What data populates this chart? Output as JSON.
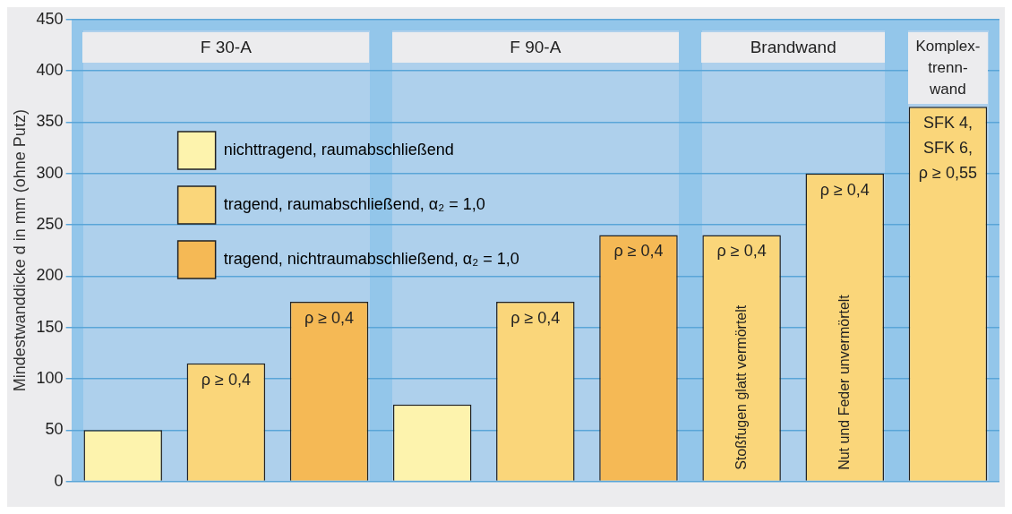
{
  "chart_data": {
    "type": "bar",
    "ylabel": "Mindestwanddicke d in mm (ohne Putz)",
    "categories": [
      null,
      null,
      null,
      null,
      null,
      null,
      null,
      null,
      null
    ],
    "series": [
      {
        "name": "nichttragend, raumabschließend",
        "color": "#fdf3ad",
        "values": [
          50,
          null,
          null,
          75,
          null,
          null,
          null,
          null,
          null
        ],
        "value_labels": [
          null,
          null,
          null,
          null,
          null,
          null,
          null,
          null,
          null
        ]
      },
      {
        "name": "tragend, raumabschließend, α₂ = 1,0",
        "color": "#fad67a",
        "values": [
          null,
          115,
          null,
          null,
          175,
          null,
          240,
          300,
          365
        ],
        "value_labels": [
          null,
          "ρ ≥ 0,4",
          null,
          null,
          "ρ ≥ 0,4",
          null,
          "ρ ≥ 0,4",
          "ρ ≥ 0,4",
          "SFK 4,\nSFK 6,\nρ ≥ 0,55"
        ]
      },
      {
        "name": "tragend, nichtraumabschließend, α₂ = 1,0",
        "color": "#f5b955",
        "values": [
          null,
          null,
          175,
          null,
          null,
          240,
          null,
          null,
          null
        ],
        "value_labels": [
          null,
          null,
          "ρ ≥ 0,4",
          null,
          null,
          "ρ ≥ 0,4",
          null,
          null,
          null
        ]
      }
    ],
    "stacked": true,
    "ylim": [
      0,
      450
    ],
    "yticks": [
      0,
      50,
      100,
      150,
      200,
      250,
      300,
      350,
      400,
      450
    ],
    "grid": "y",
    "legend": "top left",
    "annotations": [
      "F 30-A",
      "F 90-A",
      "Brandwand",
      "Komplex-\ntrenn-\nwand",
      "Stoßfugen glatt vermörtelt",
      "Nut und Feder unvermörtelt"
    ]
  }
}
